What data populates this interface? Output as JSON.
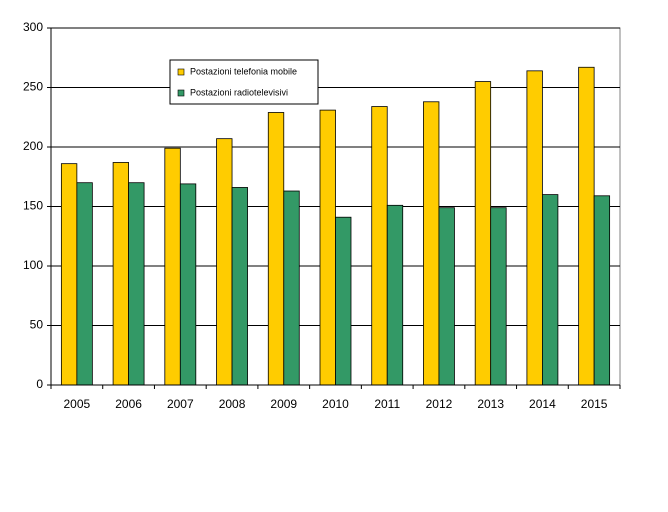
{
  "chart_data": {
    "type": "bar",
    "categories": [
      "2005",
      "2006",
      "2007",
      "2008",
      "2009",
      "2010",
      "2011",
      "2012",
      "2013",
      "2014",
      "2015"
    ],
    "series": [
      {
        "name": "Postazioni telefonia mobile",
        "color": "#ffcc00",
        "values": [
          186,
          187,
          199,
          207,
          229,
          231,
          234,
          238,
          255,
          264,
          267
        ]
      },
      {
        "name": "Postazioni radiotelevisivi",
        "color": "#339966",
        "values": [
          170,
          170,
          169,
          166,
          163,
          141,
          151,
          149,
          149,
          160,
          159
        ]
      }
    ],
    "ylim": [
      0,
      300
    ],
    "yticks": [
      0,
      50,
      100,
      150,
      200,
      250,
      300
    ],
    "grid": true
  }
}
